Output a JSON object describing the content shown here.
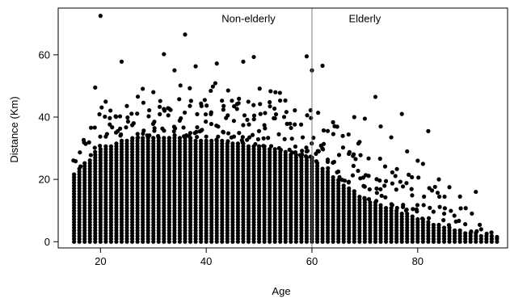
{
  "chart_data": {
    "type": "scatter",
    "title": "",
    "xlabel": "Age",
    "ylabel": "Distance (Km)",
    "xlim": [
      12,
      97
    ],
    "ylim": [
      -2,
      75
    ],
    "xticks": [
      20,
      40,
      60,
      80
    ],
    "yticks": [
      0,
      20,
      40,
      60
    ],
    "grid": false,
    "legend": "none",
    "point_color": "#000000",
    "divider": {
      "x": 60,
      "color": "#808080"
    },
    "annotations": [
      {
        "text": "Non-elderly",
        "x": 48,
        "y": 70.5
      },
      {
        "text": "Elderly",
        "x": 70,
        "y": 70.5
      }
    ],
    "notable_points": [
      {
        "x": 20,
        "y": 72.5
      },
      {
        "x": 36,
        "y": 66.5
      },
      {
        "x": 32,
        "y": 60.2
      },
      {
        "x": 59,
        "y": 59.5
      },
      {
        "x": 49,
        "y": 59.3
      },
      {
        "x": 24,
        "y": 57.8
      },
      {
        "x": 47,
        "y": 57.8
      },
      {
        "x": 62,
        "y": 56.5
      },
      {
        "x": 38,
        "y": 56.3
      },
      {
        "x": 42,
        "y": 57.2
      },
      {
        "x": 34,
        "y": 55.0
      },
      {
        "x": 60,
        "y": 55.0
      },
      {
        "x": 19,
        "y": 49.5
      },
      {
        "x": 30,
        "y": 48.0
      },
      {
        "x": 72,
        "y": 46.5
      },
      {
        "x": 68,
        "y": 40.0
      },
      {
        "x": 70,
        "y": 39.5
      },
      {
        "x": 77,
        "y": 41.0
      },
      {
        "x": 73,
        "y": 37.0
      },
      {
        "x": 82,
        "y": 35.5
      },
      {
        "x": 75,
        "y": 33.5
      },
      {
        "x": 78,
        "y": 29.0
      },
      {
        "x": 80,
        "y": 26.0
      },
      {
        "x": 81,
        "y": 25.0
      },
      {
        "x": 84,
        "y": 20.0
      },
      {
        "x": 86,
        "y": 17.5
      },
      {
        "x": 88,
        "y": 14.5
      },
      {
        "x": 91,
        "y": 16.0
      },
      {
        "x": 85,
        "y": 9.0
      },
      {
        "x": 92,
        "y": 4.0
      },
      {
        "x": 95,
        "y": 1.5
      }
    ],
    "distribution": {
      "x_range": [
        15,
        95
      ],
      "dense_band_max_by_age": [
        {
          "x": 15,
          "y": 22
        },
        {
          "x": 20,
          "y": 30
        },
        {
          "x": 25,
          "y": 33
        },
        {
          "x": 30,
          "y": 34
        },
        {
          "x": 40,
          "y": 33
        },
        {
          "x": 50,
          "y": 31
        },
        {
          "x": 60,
          "y": 27
        },
        {
          "x": 65,
          "y": 20
        },
        {
          "x": 70,
          "y": 14
        },
        {
          "x": 75,
          "y": 11
        },
        {
          "x": 80,
          "y": 8
        },
        {
          "x": 85,
          "y": 5
        },
        {
          "x": 90,
          "y": 3
        },
        {
          "x": 95,
          "y": 1.5
        }
      ],
      "sparse_max_by_age": [
        {
          "x": 15,
          "y": 30
        },
        {
          "x": 20,
          "y": 45
        },
        {
          "x": 25,
          "y": 48
        },
        {
          "x": 30,
          "y": 50
        },
        {
          "x": 40,
          "y": 52
        },
        {
          "x": 50,
          "y": 50
        },
        {
          "x": 60,
          "y": 45
        },
        {
          "x": 65,
          "y": 38
        },
        {
          "x": 70,
          "y": 32
        },
        {
          "x": 75,
          "y": 27
        },
        {
          "x": 80,
          "y": 22
        },
        {
          "x": 85,
          "y": 15
        },
        {
          "x": 90,
          "y": 10
        },
        {
          "x": 95,
          "y": 3
        }
      ]
    }
  }
}
